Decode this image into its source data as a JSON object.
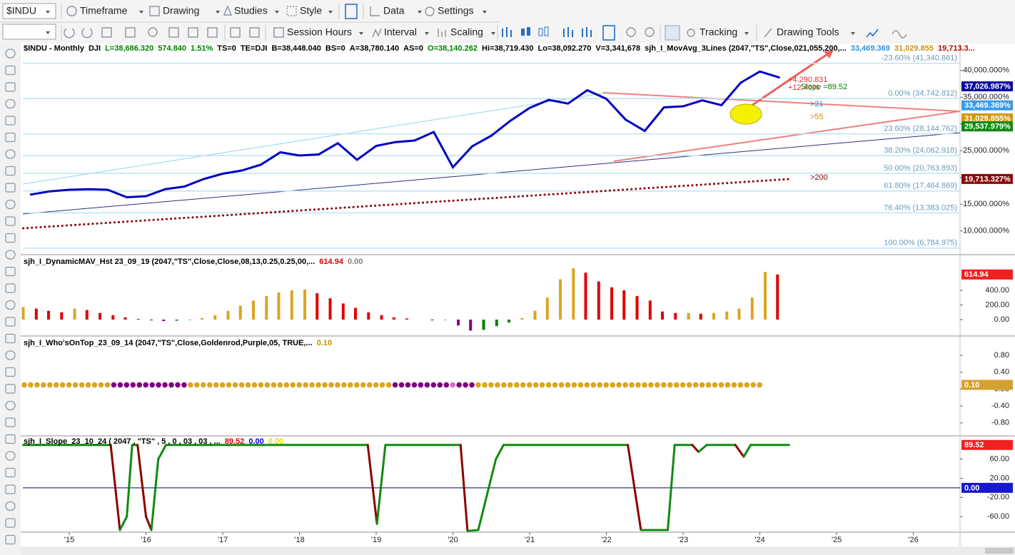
{
  "toolbar": {
    "symbol": "$INDU",
    "row1": [
      "Timeframe",
      "Drawing",
      "Studies",
      "Style",
      "Data",
      "Settings"
    ],
    "row2": [
      "Session Hours",
      "Interval",
      "Scaling",
      "Tracking",
      "Drawing Tools"
    ]
  },
  "chart_data": [
    {
      "type": "line",
      "header": [
        {
          "text": "$INDU - Monthly",
          "color": "#000000"
        },
        {
          "text": "DJI",
          "color": "#000000"
        },
        {
          "text": "L=38,686.320",
          "color": "#008000"
        },
        {
          "text": "574.840",
          "color": "#008000"
        },
        {
          "text": "1.51%",
          "color": "#008000"
        },
        {
          "text": "TS=0",
          "color": "#000000"
        },
        {
          "text": "TE=DJI",
          "color": "#000000"
        },
        {
          "text": "B=38,448.040",
          "color": "#000000"
        },
        {
          "text": "BS=0",
          "color": "#000000"
        },
        {
          "text": "A=38,780.140",
          "color": "#000000"
        },
        {
          "text": "AS=0",
          "color": "#000000"
        },
        {
          "text": "O=38,140.262",
          "color": "#008000"
        },
        {
          "text": "Hi=38,719.430",
          "color": "#000000"
        },
        {
          "text": "Lo=38,092.270",
          "color": "#000000"
        },
        {
          "text": "V=3,341,678",
          "color": "#000000"
        },
        {
          "text": "sjh_I_MovAvg_3Lines (2047,\"TS\",Close,021,055,200,...",
          "color": "#000000"
        },
        {
          "text": "33,469.369",
          "color": "#3090e0"
        },
        {
          "text": "31,029.855",
          "color": "#d09010"
        },
        {
          "text": "19,713.3...",
          "color": "#c00000"
        }
      ],
      "xlim": [
        2014.395,
        2026.609
      ],
      "xticks": [
        {
          "value": 2015,
          "label": "'15"
        },
        {
          "value": 2016,
          "label": "'16"
        },
        {
          "value": 2017,
          "label": "'17"
        },
        {
          "value": 2018,
          "label": "'18"
        },
        {
          "value": 2019,
          "label": "'19"
        },
        {
          "value": 2020,
          "label": "'20"
        },
        {
          "value": 2021,
          "label": "'21"
        },
        {
          "value": 2022,
          "label": "'22"
        },
        {
          "value": 2023,
          "label": "'23"
        },
        {
          "value": 2024,
          "label": "'24"
        },
        {
          "value": 2025,
          "label": "'25"
        },
        {
          "value": 2026,
          "label": "'26"
        }
      ],
      "ylim": [
        5830,
        44900
      ],
      "yticks": [
        {
          "value": 40000,
          "label": "40,000.000%"
        },
        {
          "value": 35000,
          "label": "35,000.000%"
        },
        {
          "value": 30000,
          "label": "30,000.000%"
        },
        {
          "value": 25000,
          "label": "25,000.000%"
        },
        {
          "value": 20000,
          "label": "20,000.000%"
        },
        {
          "value": 15000,
          "label": "15,000.000%"
        },
        {
          "value": 10000,
          "label": "10,000.000%"
        }
      ],
      "series": [
        {
          "color": "#0000c0",
          "style": "solid",
          "x": [
            2014.5,
            2014.75,
            2015,
            2015.25,
            2015.5,
            2015.75,
            2016,
            2016.25,
            2016.5,
            2016.75,
            2017,
            2017.25,
            2017.5,
            2017.75,
            2018,
            2018.25,
            2018.5,
            2018.75,
            2019,
            2019.25,
            2019.5,
            2019.75,
            2020,
            2020.25,
            2020.5,
            2020.75,
            2021,
            2021.25,
            2021.5,
            2021.75,
            2022,
            2022.25,
            2022.5,
            2022.75,
            2023,
            2023.25,
            2023.5,
            2023.75,
            2024,
            2024.25
          ],
          "values": [
            16800,
            17400,
            17700,
            17800,
            17700,
            16300,
            16500,
            17800,
            18300,
            19700,
            20700,
            21300,
            22400,
            24700,
            24100,
            24300,
            26400,
            23300,
            25900,
            26600,
            26900,
            28500,
            21900,
            25800,
            27800,
            30600,
            33000,
            34500,
            33800,
            36300,
            34700,
            30800,
            28700,
            33100,
            33300,
            34400,
            33500,
            37700,
            39800,
            38700
          ]
        },
        {
          "color": "#8b0000",
          "style": "dotted",
          "x": [
            2014.4,
            2024.4
          ],
          "values": [
            10500,
            19713.327
          ]
        }
      ],
      "fib_levels": [
        {
          "value": 41340.861,
          "label": "-23.60% (41,340.861)"
        },
        {
          "value": 34742.812,
          "label": "0.00% (34,742.812)"
        },
        {
          "value": 28144.762,
          "label": "23.60% (28,144.762)"
        },
        {
          "value": 24062.918,
          "label": "38.20% (24,062.918)"
        },
        {
          "value": 20763.893,
          "label": "50.00% (20,763.893)"
        },
        {
          "value": 17464.869,
          "label": "61.80% (17,464.869)"
        },
        {
          "value": 13383.025,
          "label": "76.40% (13,383.025)"
        },
        {
          "value": 6784.975,
          "label": "100.00% (6,784.975)"
        }
      ],
      "last_labels": [
        {
          "value": 37026.987,
          "label": "37,026.987%",
          "color": "#0a0aa0"
        },
        {
          "value": 33469.369,
          "label": "33,469.369%",
          "color": "#3a9ae8"
        },
        {
          "value": 31029.855,
          "label": "31,029.855%",
          "color": "#d4960e"
        },
        {
          "value": 29537.979,
          "label": "29,537.979%",
          "color": "#108a10"
        },
        {
          "value": 19713.327,
          "label": "19,713.327%",
          "color": "#8b0a0a"
        }
      ],
      "annotations": [
        {
          "text": ">21",
          "color": "#3090e0"
        },
        {
          "text": ">55",
          "color": "#d09010"
        },
        {
          "text": ">200",
          "color": "#900000"
        },
        {
          "text": "+4,290.831",
          "color": "#e03030"
        },
        {
          "text": "+12.46%",
          "color": "#e03030"
        },
        {
          "text": "Slope =89.52",
          "color": "#008000"
        }
      ]
    },
    {
      "type": "bar",
      "header": [
        {
          "text": "sjh_I_DynamicMAV_Hst 23_09_19 (2047,\"TS\",Close,Close,08,13,0.25,0.25,00,...",
          "color": "#000000"
        },
        {
          "text": "614.94",
          "color": "#e00000"
        },
        {
          "text": "0.00",
          "color": "#808080"
        }
      ],
      "ylim": [
        -214,
        856
      ],
      "yticks": [
        {
          "value": 0,
          "label": "0.00"
        },
        {
          "value": 200,
          "label": "200.00"
        },
        {
          "value": 400,
          "label": "400.00"
        }
      ],
      "colors": {
        "rise": "#daa520",
        "fall": "#e00000",
        "neg_fall": "#800080",
        "neg_rise": "#008000"
      },
      "x": [
        2014.4,
        2014.57,
        2014.73,
        2014.9,
        2015.07,
        2015.23,
        2015.4,
        2015.57,
        2015.73,
        2015.9,
        2016.07,
        2016.23,
        2016.4,
        2016.57,
        2016.73,
        2016.9,
        2017.07,
        2017.23,
        2017.4,
        2017.57,
        2017.73,
        2017.9,
        2018.07,
        2018.23,
        2018.4,
        2018.57,
        2018.73,
        2018.9,
        2019.07,
        2019.23,
        2019.4,
        2019.57,
        2019.73,
        2019.9,
        2020.07,
        2020.23,
        2020.4,
        2020.57,
        2020.73,
        2020.9,
        2021.07,
        2021.23,
        2021.4,
        2021.57,
        2021.73,
        2021.9,
        2022.07,
        2022.23,
        2022.4,
        2022.57,
        2022.73,
        2022.9,
        2023.07,
        2023.23,
        2023.4,
        2023.57,
        2023.73,
        2023.9,
        2024.07,
        2024.23
      ],
      "values": [
        170,
        150,
        120,
        100,
        150,
        130,
        90,
        60,
        30,
        10,
        -10,
        -20,
        -15,
        -5,
        20,
        60,
        120,
        190,
        260,
        320,
        370,
        400,
        410,
        360,
        290,
        220,
        160,
        100,
        60,
        30,
        15,
        0,
        -10,
        -5,
        -80,
        -150,
        -140,
        -90,
        -40,
        20,
        120,
        300,
        550,
        700,
        640,
        520,
        440,
        400,
        320,
        260,
        110,
        90,
        90,
        80,
        90,
        110,
        150,
        300,
        650,
        614.94
      ],
      "last_label": {
        "value": 614.94,
        "label": "614.94",
        "color": "#f02020"
      }
    },
    {
      "type": "scatter",
      "header": [
        {
          "text": "sjh_I_Who'sOnTop_23_09_14 (2047,\"TS\",Close,Goldenrod,Purple,05,  TRUE,...",
          "color": "#000000"
        },
        {
          "text": "0.10",
          "color": "#c89000"
        }
      ],
      "ylim": [
        -1.09,
        1.24
      ],
      "yticks": [
        {
          "value": 0.8,
          "label": "0.80"
        },
        {
          "value": 0.4,
          "label": "0.40"
        },
        {
          "value": 0,
          "label": "0.00"
        },
        {
          "value": -0.4,
          "label": "-0.40"
        },
        {
          "value": -0.8,
          "label": "-0.80"
        }
      ],
      "value": 0.1,
      "runs": [
        {
          "color": "#daa520",
          "count": 14
        },
        {
          "color": "#800080",
          "count": 12
        },
        {
          "color": "#daa520",
          "count": 32
        },
        {
          "color": "#800080",
          "count": 9
        },
        {
          "color": "#d070d0",
          "count": 1
        },
        {
          "color": "#800080",
          "count": 3
        },
        {
          "color": "#daa520",
          "count": 45
        }
      ],
      "last_label": {
        "value": 0.1,
        "label": "0.10",
        "color": "#d4a030"
      }
    },
    {
      "type": "line",
      "header": [
        {
          "text": "sjh_I_Slope_23_10_24 ( 2047 , \"TS\" , 5 , 0 , 03 , 03 , ...",
          "color": "#000000"
        },
        {
          "text": "89.52",
          "color": "#e00000"
        },
        {
          "text": "0.00",
          "color": "#0000e0"
        },
        {
          "text": "0.00",
          "color": "#e0e000"
        }
      ],
      "ylim": [
        -91,
        107
      ],
      "yticks": [
        {
          "value": 60,
          "label": "60.00"
        },
        {
          "value": 20,
          "label": "20.00"
        },
        {
          "value": -20,
          "label": "-20.00"
        },
        {
          "value": -60,
          "label": "-60.00"
        }
      ],
      "colors": {
        "up": "#108a10",
        "down": "#8b0000",
        "zero": "#000080"
      },
      "x": [
        2014.4,
        2015.54,
        2015.66,
        2015.75,
        2015.82,
        2015.89,
        2016.0,
        2016.07,
        2016.16,
        2016.26,
        2018.89,
        2019.01,
        2019.12,
        2020.1,
        2020.19,
        2020.33,
        2020.56,
        2020.66,
        2022.28,
        2022.45,
        2022.8,
        2022.89,
        2023.12,
        2023.2,
        2023.31,
        2023.68,
        2023.79,
        2023.88,
        2024.38
      ],
      "values": [
        89.52,
        89.52,
        -88,
        -60,
        89.52,
        89.52,
        -60,
        -88,
        60,
        89.52,
        89.52,
        -75,
        89.52,
        89.52,
        -90,
        -88,
        60,
        89.52,
        89.52,
        -88,
        -88,
        89.52,
        89.52,
        75,
        89.52,
        89.52,
        65,
        89.52,
        89.52
      ],
      "zero_level": 0,
      "last_labels": [
        {
          "value": 89.52,
          "label": "89.52",
          "color": "#f02020"
        },
        {
          "value": 0,
          "label": "0.00",
          "color": "#1818d0"
        }
      ]
    }
  ]
}
